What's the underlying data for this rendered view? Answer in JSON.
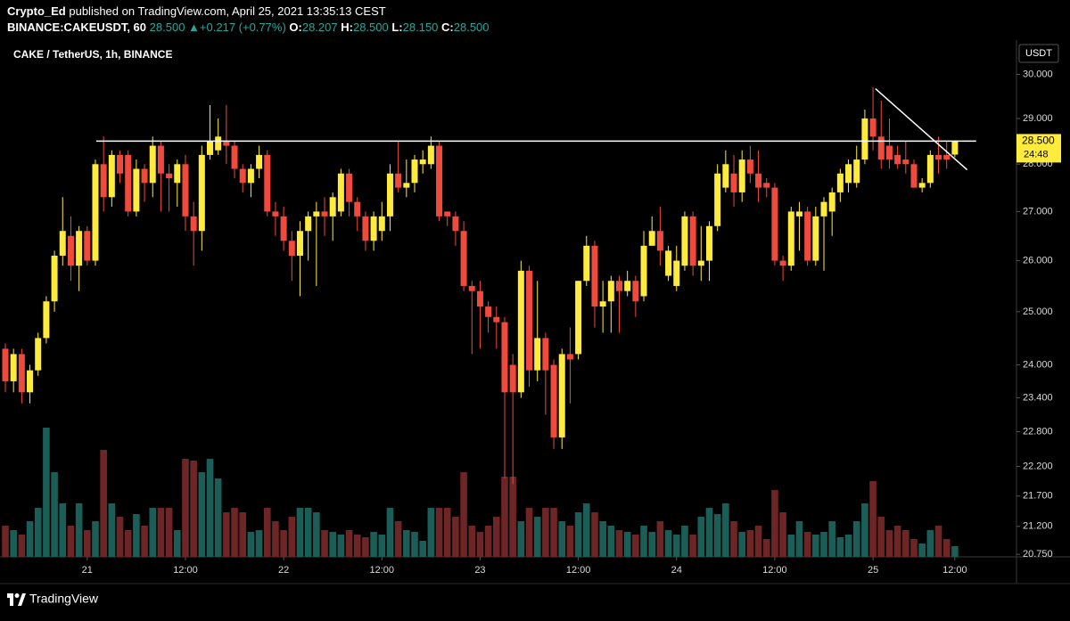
{
  "header": {
    "author": "Crypto_Ed",
    "published": "published on TradingView.com, April 25, 2021 13:35:13 CEST",
    "symbol": "BINANCE:CAKEUSDT, 60",
    "last": "28.500",
    "arrow": "▲",
    "change": "+0.217 (+0.77%)",
    "o_label": "O:",
    "o": "28.207",
    "h_label": "H:",
    "h": "28.500",
    "l_label": "L:",
    "l": "28.150",
    "c_label": "C:",
    "c": "28.500"
  },
  "footer": {
    "brand": "TradingView"
  },
  "chart_data": {
    "type": "candlestick",
    "title": "CAKE / TetherUS, 1h, BINANCE",
    "y_axis_label": "USDT",
    "price_tag": "28.500",
    "countdown": "24:48",
    "log_scale": true,
    "grid": false,
    "up_color": "#ffeb3b",
    "down_color": "#ef4a3c",
    "volume_up_color": "#1b5e57",
    "volume_down_color": "#6e2525",
    "drawing_color": "#ffffff",
    "categories": [
      null,
      null,
      null,
      null,
      null,
      null,
      null,
      null,
      null,
      null,
      "21",
      null,
      null,
      null,
      null,
      null,
      null,
      null,
      null,
      null,
      null,
      null,
      "12:00",
      null,
      null,
      null,
      null,
      null,
      null,
      null,
      null,
      null,
      null,
      null,
      "22",
      null,
      null,
      null,
      null,
      null,
      null,
      null,
      null,
      null,
      null,
      null,
      "12:00",
      null,
      null,
      null,
      null,
      null,
      null,
      null,
      null,
      null,
      null,
      null,
      "23",
      null,
      null,
      null,
      null,
      null,
      null,
      null,
      null,
      null,
      null,
      null,
      "12:00",
      null,
      null,
      null,
      null,
      null,
      null,
      null,
      null,
      null,
      null,
      null,
      "24",
      null,
      null,
      null,
      null,
      null,
      null,
      null,
      null,
      null,
      null,
      null,
      "12:00",
      null,
      null,
      null,
      null,
      null,
      null,
      null,
      null,
      null,
      null,
      null,
      "25",
      null,
      null,
      null,
      null,
      null,
      null,
      null,
      null,
      null,
      "12:00"
    ],
    "open": [
      24.3,
      23.7,
      24.2,
      23.5,
      23.9,
      24.5,
      25.2,
      26.1,
      26.5,
      25.9,
      26.6,
      26.0,
      28.0,
      27.3,
      28.2,
      28.2,
      27.0,
      27.9,
      27.6,
      28.4,
      27.8,
      27.6,
      28.0,
      26.9,
      26.6,
      28.2,
      28.3,
      28.5,
      28.4,
      27.9,
      27.6,
      27.9,
      28.2,
      27.0,
      26.9,
      26.4,
      26.1,
      26.6,
      26.9,
      27.0,
      26.9,
      27.0,
      27.8,
      27.2,
      26.9,
      26.4,
      26.6,
      26.9,
      27.8,
      27.5,
      27.6,
      28.0,
      28.0,
      28.4,
      27.0,
      26.9,
      26.6,
      25.5,
      25.4,
      25.1,
      24.9,
      24.8,
      24.0,
      23.5,
      25.8,
      23.9,
      24.5,
      24.0,
      22.7,
      24.2,
      24.2,
      25.6,
      26.3,
      25.1,
      25.2,
      25.6,
      25.4,
      25.6,
      25.3,
      26.3,
      26.6,
      25.7,
      25.5,
      25.9,
      26.9,
      25.9,
      26.0,
      26.7,
      27.5,
      27.8,
      27.4,
      28.1,
      27.8,
      27.6,
      27.5,
      26.0,
      25.9,
      26.9,
      27.0,
      26.0,
      26.9,
      27.0,
      27.4,
      27.6,
      27.6,
      28.1,
      29.0,
      28.6,
      28.4,
      28.2,
      28.1,
      28.0,
      27.5,
      27.6,
      28.2,
      28.2,
      28.207
    ],
    "high": [
      24.4,
      24.3,
      24.3,
      24.0,
      24.6,
      25.3,
      26.2,
      27.3,
      26.9,
      26.7,
      26.7,
      28.1,
      28.6,
      28.3,
      28.3,
      28.3,
      28.1,
      28.0,
      28.6,
      28.5,
      28.0,
      28.1,
      28.2,
      27.2,
      28.4,
      29.3,
      29.0,
      29.3,
      28.5,
      28.0,
      28.0,
      28.4,
      28.3,
      27.2,
      27.1,
      26.6,
      26.8,
      27.0,
      27.2,
      27.3,
      27.4,
      27.9,
      27.9,
      27.3,
      27.0,
      27.0,
      27.2,
      28.0,
      28.5,
      28.1,
      28.2,
      28.3,
      28.6,
      28.5,
      27.0,
      27.0,
      26.8,
      25.6,
      25.6,
      25.2,
      25.1,
      24.9,
      24.2,
      26.0,
      25.9,
      25.6,
      24.6,
      24.1,
      24.3,
      24.7,
      25.6,
      26.5,
      26.4,
      25.6,
      25.7,
      25.7,
      25.8,
      25.7,
      26.6,
      26.9,
      27.1,
      26.3,
      26.3,
      27.0,
      27.0,
      26.7,
      26.8,
      28.0,
      28.3,
      28.2,
      28.3,
      28.4,
      28.3,
      27.7,
      27.6,
      26.1,
      27.1,
      27.2,
      27.1,
      27.1,
      27.3,
      27.5,
      27.9,
      28.1,
      28.4,
      29.2,
      29.7,
      29.4,
      29.0,
      28.4,
      28.5,
      28.1,
      27.7,
      28.3,
      28.6,
      28.5,
      28.5
    ],
    "low": [
      23.5,
      23.5,
      23.3,
      23.3,
      23.8,
      24.4,
      25.0,
      25.9,
      25.6,
      25.4,
      25.9,
      25.9,
      27.0,
      27.1,
      27.6,
      26.9,
      26.9,
      27.2,
      27.3,
      27.0,
      27.0,
      27.1,
      26.6,
      25.9,
      26.2,
      28.1,
      28.2,
      28.0,
      27.7,
      27.4,
      27.3,
      27.7,
      26.9,
      26.5,
      26.2,
      25.6,
      25.3,
      26.0,
      25.5,
      26.5,
      26.4,
      26.9,
      26.9,
      26.6,
      26.2,
      26.2,
      26.4,
      26.6,
      27.4,
      27.3,
      27.4,
      27.8,
      27.9,
      26.8,
      26.7,
      26.3,
      25.4,
      24.2,
      24.3,
      24.6,
      24.3,
      22.0,
      21.9,
      23.4,
      23.6,
      23.7,
      23.1,
      22.5,
      22.5,
      23.3,
      24.1,
      25.5,
      24.7,
      24.6,
      24.6,
      24.6,
      25.3,
      24.9,
      25.2,
      26.3,
      25.9,
      25.6,
      25.4,
      25.8,
      25.7,
      25.6,
      25.6,
      26.6,
      27.4,
      27.1,
      27.2,
      27.6,
      27.2,
      27.3,
      25.9,
      25.6,
      25.8,
      26.2,
      25.9,
      25.9,
      25.8,
      26.5,
      27.2,
      27.4,
      27.5,
      28.0,
      28.3,
      27.9,
      27.9,
      27.9,
      27.8,
      27.5,
      27.4,
      27.5,
      27.8,
      27.9,
      28.15
    ],
    "close": [
      23.7,
      24.2,
      23.5,
      23.9,
      24.5,
      25.2,
      26.1,
      26.6,
      25.9,
      26.6,
      26.0,
      28.0,
      27.3,
      28.2,
      27.8,
      27.0,
      27.9,
      27.6,
      28.4,
      27.8,
      27.7,
      28.0,
      26.9,
      26.6,
      28.2,
      28.5,
      28.6,
      28.4,
      27.9,
      27.6,
      27.9,
      28.2,
      27.0,
      26.9,
      26.4,
      26.1,
      26.6,
      26.9,
      27.0,
      26.9,
      27.3,
      27.8,
      27.2,
      26.9,
      26.4,
      26.9,
      26.9,
      27.8,
      27.5,
      27.6,
      28.1,
      28.1,
      28.4,
      26.9,
      26.9,
      26.6,
      25.5,
      25.4,
      25.1,
      24.9,
      24.8,
      23.5,
      23.5,
      25.8,
      23.9,
      24.5,
      23.9,
      22.7,
      24.2,
      24.1,
      25.6,
      26.3,
      25.1,
      25.2,
      25.6,
      25.4,
      25.6,
      25.2,
      26.3,
      26.6,
      26.2,
      26.2,
      26.0,
      26.9,
      25.9,
      26.0,
      26.7,
      27.8,
      28.0,
      27.4,
      28.1,
      27.8,
      27.5,
      27.5,
      26.0,
      25.9,
      27.0,
      27.0,
      26.0,
      26.9,
      27.2,
      27.4,
      27.8,
      28.0,
      28.1,
      29.0,
      28.6,
      28.1,
      28.1,
      28.0,
      28.0,
      27.5,
      27.6,
      28.2,
      28.1,
      28.1,
      28.5
    ],
    "volume": [
      35,
      30,
      25,
      40,
      55,
      145,
      95,
      60,
      35,
      60,
      30,
      40,
      120,
      60,
      45,
      30,
      48,
      35,
      55,
      55,
      55,
      30,
      110,
      108,
      95,
      110,
      88,
      50,
      55,
      50,
      28,
      30,
      55,
      40,
      30,
      45,
      55,
      55,
      50,
      30,
      28,
      25,
      30,
      25,
      22,
      28,
      25,
      55,
      40,
      30,
      28,
      18,
      55,
      55,
      55,
      45,
      95,
      35,
      28,
      35,
      45,
      90,
      90,
      40,
      55,
      45,
      55,
      55,
      40,
      35,
      50,
      60,
      50,
      40,
      35,
      30,
      28,
      25,
      35,
      28,
      40,
      30,
      25,
      35,
      25,
      45,
      55,
      48,
      60,
      40,
      28,
      30,
      35,
      20,
      75,
      50,
      25,
      40,
      28,
      25,
      28,
      40,
      22,
      25,
      40,
      60,
      85,
      45,
      30,
      35,
      30,
      20,
      15,
      30,
      35,
      20,
      12
    ],
    "volume_ylim": [
      0,
      580
    ],
    "ylim": [
      20.71,
      30.8
    ],
    "yticks": [
      {
        "value": 20.75,
        "label": "20.750"
      },
      {
        "value": 21.2,
        "label": "21.200"
      },
      {
        "value": 21.7,
        "label": "21.700"
      },
      {
        "value": 22.2,
        "label": "22.200"
      },
      {
        "value": 22.8,
        "label": "22.800"
      },
      {
        "value": 23.4,
        "label": "23.400"
      },
      {
        "value": 24,
        "label": "24.000"
      },
      {
        "value": 25,
        "label": "25.000"
      },
      {
        "value": 26,
        "label": "26.000"
      },
      {
        "value": 27,
        "label": "27.000"
      },
      {
        "value": 28,
        "label": "28.000"
      },
      {
        "value": 29,
        "label": "29.000"
      },
      {
        "value": 30,
        "label": "30.000"
      }
    ],
    "hline": {
      "x": [
        11.1,
        118.6
      ],
      "y": 28.5
    },
    "trendline": {
      "x": [
        106.3,
        117.5
      ],
      "y": [
        29.67,
        27.88
      ]
    }
  }
}
